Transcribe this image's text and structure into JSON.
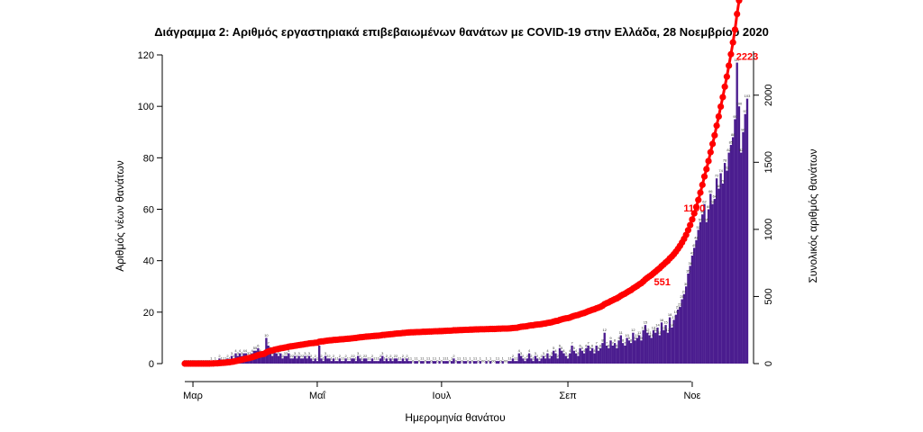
{
  "colors": {
    "bars": "#4b1d8f",
    "cumulative": "#ff0000",
    "axis": "#000000"
  },
  "chart_data": {
    "type": "bar",
    "title": "Διάγραμμα 2: Αριθμός εργαστηριακά επιβεβαιωμένων θανάτων με COVID-19 στην Ελλάδα, 28 Νοεμβρίου 2020",
    "xlabel": "Ημερομηνία θανάτου",
    "ylabel": "Αριθμός νέων θανάτων",
    "y2label": "Συνολικός αριθμός θανάτων",
    "date_start": "2020-02-26",
    "date_end": "2020-11-28",
    "ylim": [
      0,
      120
    ],
    "y2lim": [
      0,
      2300
    ],
    "yticks": [
      "0",
      "20",
      "40",
      "60",
      "80",
      "100",
      "120"
    ],
    "y2ticks": [
      "0",
      "500",
      "1000",
      "1500",
      "2000"
    ],
    "xticks": [
      {
        "label": "Μαρ",
        "date": "2020-03-01"
      },
      {
        "label": "Μαΐ",
        "date": "2020-05-01"
      },
      {
        "label": "Ιουλ",
        "date": "2020-07-01"
      },
      {
        "label": "Σεπ",
        "date": "2020-09-01"
      },
      {
        "label": "Νοε",
        "date": "2020-11-01"
      }
    ],
    "series": [
      {
        "type": "bar",
        "daily": [
          0,
          0,
          0,
          0,
          0,
          0,
          0,
          0,
          0,
          0,
          0,
          0,
          0,
          1,
          0,
          1,
          0,
          2,
          1,
          1,
          1,
          2,
          1,
          3,
          2,
          4,
          3,
          4,
          3,
          4,
          4,
          3,
          3,
          4,
          5,
          5,
          6,
          4,
          3,
          3,
          10,
          7,
          5,
          3,
          5,
          4,
          3,
          4,
          2,
          3,
          3,
          4,
          2,
          2,
          3,
          2,
          3,
          2,
          2,
          3,
          2,
          3,
          2,
          1,
          2,
          1,
          7,
          2,
          1,
          3,
          2,
          2,
          1,
          2,
          1,
          1,
          2,
          1,
          1,
          2,
          1,
          1,
          2,
          2,
          1,
          3,
          2,
          1,
          2,
          2,
          1,
          1,
          2,
          1,
          1,
          1,
          2,
          3,
          1,
          2,
          1,
          2,
          1,
          2,
          2,
          1,
          1,
          2,
          1,
          2,
          1,
          1,
          0,
          1,
          1,
          0,
          1,
          1,
          0,
          1,
          1,
          0,
          1,
          1,
          0,
          1,
          0,
          1,
          1,
          1,
          0,
          1,
          2,
          0,
          1,
          1,
          0,
          1,
          1,
          0,
          1,
          0,
          1,
          1,
          0,
          1,
          0,
          0,
          1,
          0,
          1,
          0,
          0,
          1,
          1,
          0,
          1,
          0,
          0,
          1,
          1,
          2,
          1,
          1,
          4,
          3,
          2,
          1,
          2,
          4,
          2,
          1,
          3,
          2,
          1,
          2,
          3,
          2,
          4,
          2,
          3,
          5,
          4,
          2,
          6,
          5,
          4,
          3,
          2,
          4,
          7,
          5,
          4,
          3,
          6,
          5,
          4,
          6,
          7,
          5,
          6,
          4,
          7,
          5,
          6,
          8,
          12,
          7,
          6,
          9,
          7,
          8,
          6,
          9,
          11,
          8,
          7,
          10,
          9,
          8,
          12,
          9,
          10,
          11,
          9,
          13,
          15,
          12,
          11,
          10,
          13,
          12,
          14,
          11,
          16,
          13,
          15,
          12,
          18,
          14,
          17,
          19,
          21,
          22,
          25,
          27,
          30,
          35,
          38,
          42,
          45,
          48,
          52,
          55,
          58,
          62,
          55,
          60,
          66,
          62,
          64,
          72,
          68,
          74,
          70,
          78,
          75,
          82,
          85,
          88,
          95,
          117,
          100,
          82,
          90,
          97,
          103,
          47
        ]
      },
      {
        "type": "line",
        "name": "cumulative",
        "labels": [
          {
            "text": "551",
            "value": 551,
            "date": "2020-10-24"
          },
          {
            "text": "1100",
            "value": 1100,
            "date": "2020-11-10"
          },
          {
            "text": "2223",
            "value": 2223,
            "date": "2020-11-28"
          }
        ]
      }
    ]
  }
}
